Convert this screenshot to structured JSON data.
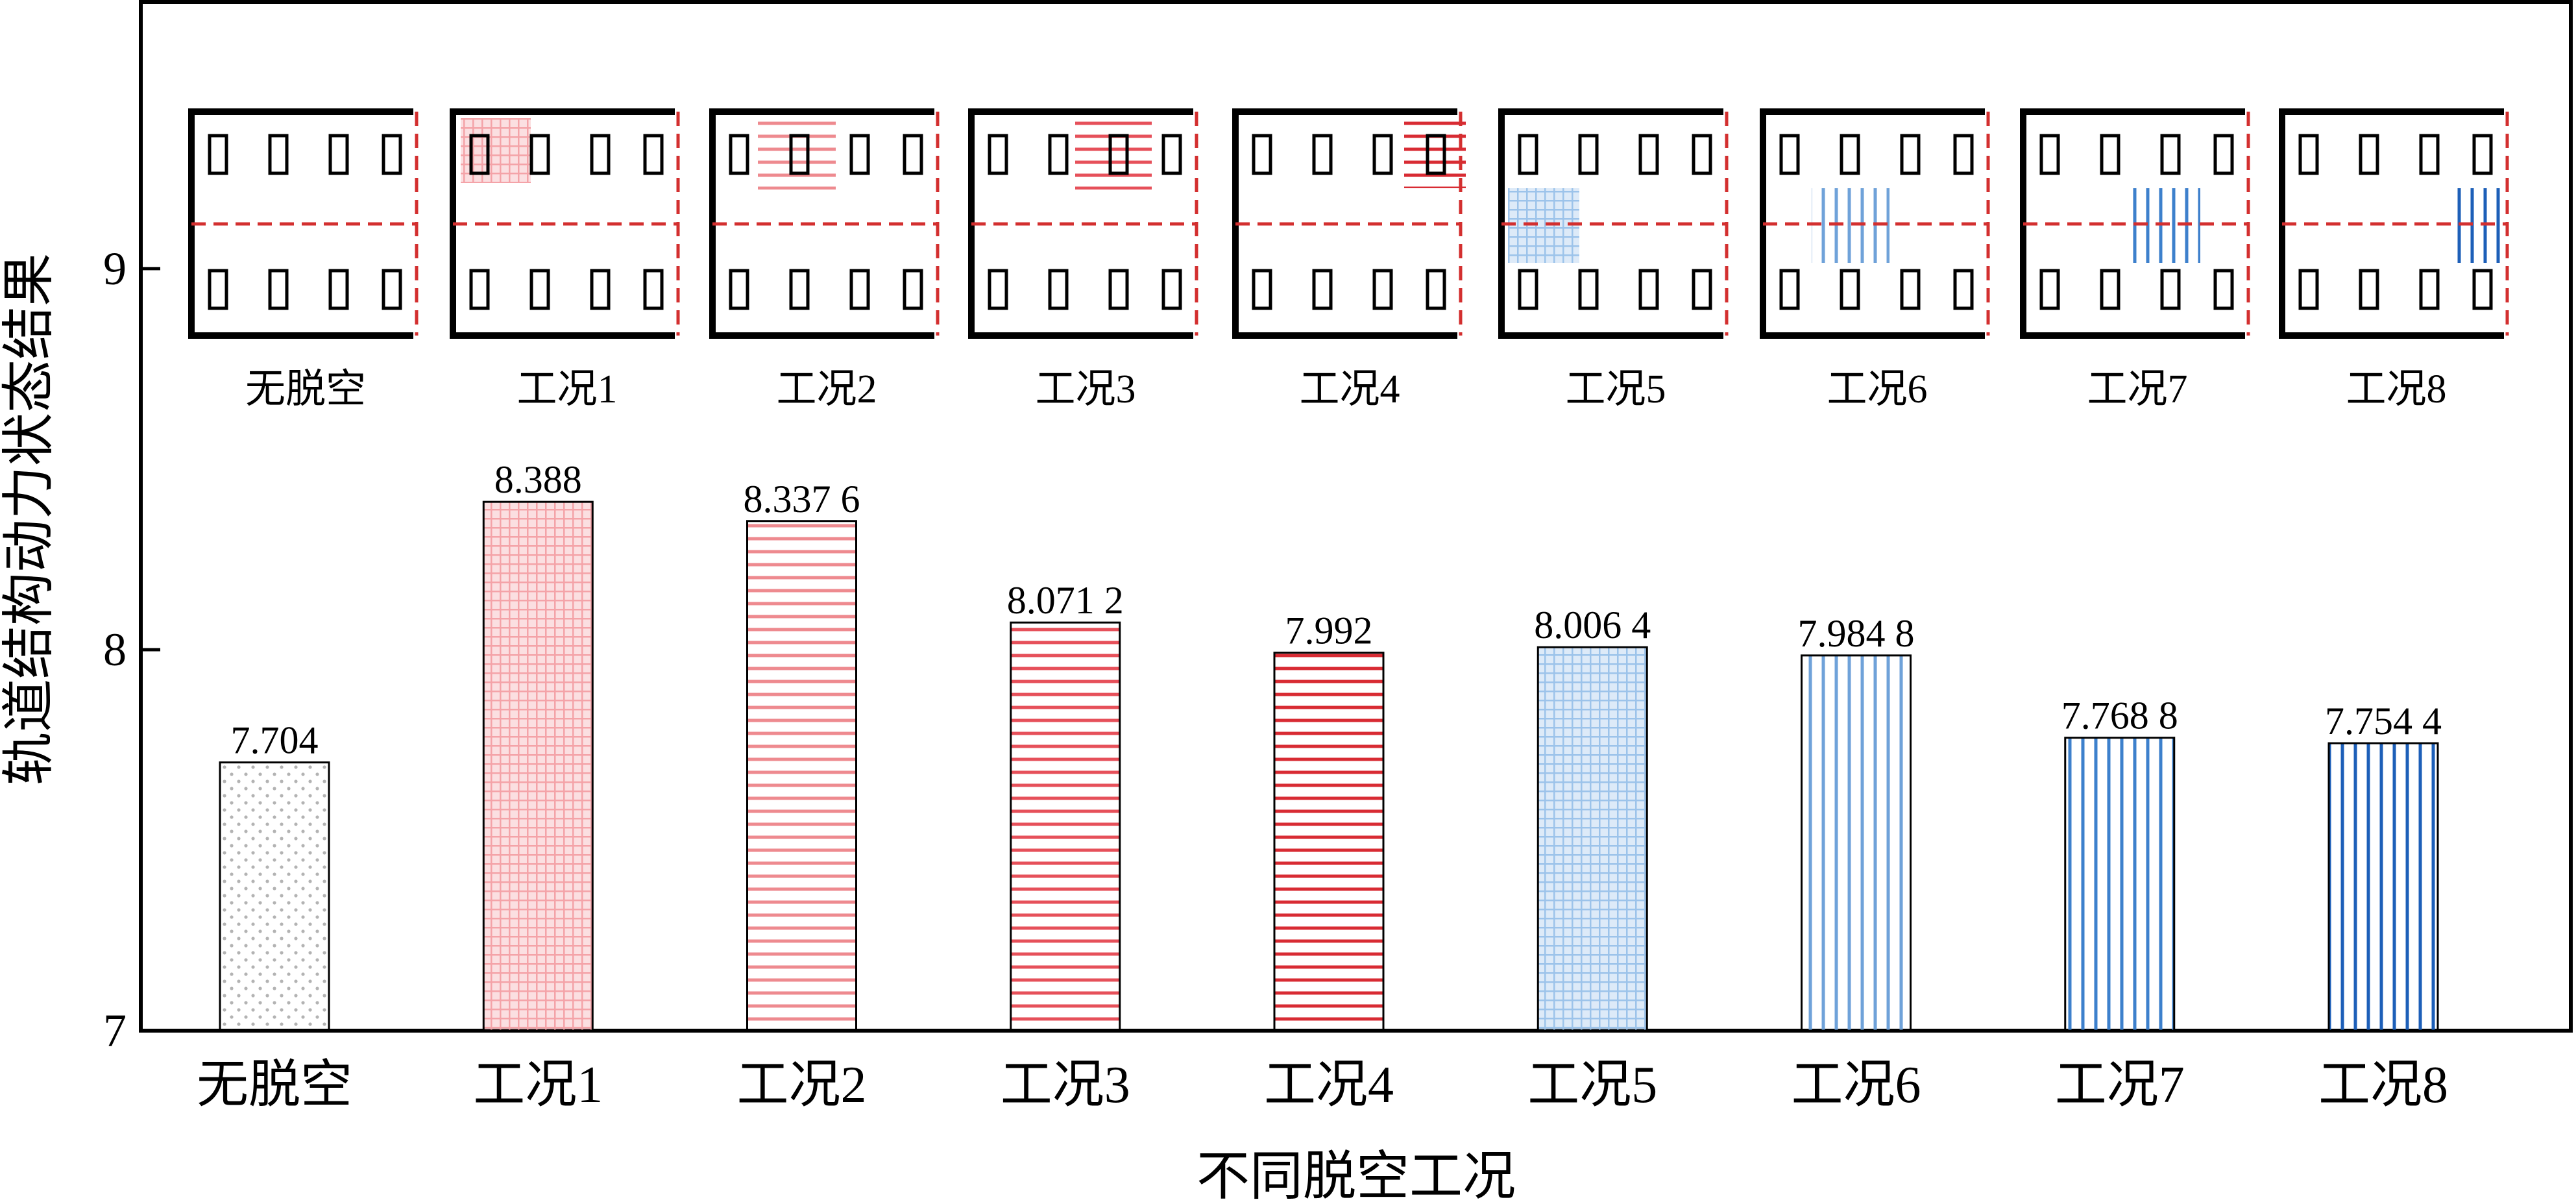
{
  "chart_data": {
    "type": "bar",
    "xlabel": "不同脱空工况",
    "ylabel": "轨道结构动力状态结果",
    "ylim": [
      7,
      9.7
    ],
    "yticks": [
      7,
      8,
      9
    ],
    "categories": [
      "无脱空",
      "工况1",
      "工况2",
      "工况3",
      "工况4",
      "工况5",
      "工况6",
      "工况7",
      "工况8"
    ],
    "values": [
      7.704,
      8.388,
      8.3376,
      8.0712,
      7.992,
      8.0064,
      7.9848,
      7.7688,
      7.7544
    ],
    "value_labels": [
      "7.704",
      "8.388",
      "8.337 6",
      "8.071 2",
      "7.992",
      "8.006 4",
      "7.984 8",
      "7.768 8",
      "7.754 4"
    ],
    "bar_styles": [
      {
        "pattern": "dots",
        "color": "#b3b3b3"
      },
      {
        "pattern": "grid",
        "color": "#f4a3a8"
      },
      {
        "pattern": "hlines",
        "color": "#ee8a8f"
      },
      {
        "pattern": "hlines",
        "color": "#e6505a"
      },
      {
        "pattern": "hlines",
        "color": "#d82b33"
      },
      {
        "pattern": "grid",
        "color": "#9cc3ea"
      },
      {
        "pattern": "vlines",
        "color": "#6fa2d9"
      },
      {
        "pattern": "vlines",
        "color": "#3d80cc"
      },
      {
        "pattern": "vlines",
        "color": "#1d5fb8"
      }
    ],
    "grid": false,
    "legend": "none"
  },
  "inset": {
    "labels": [
      "无脱空",
      "工况1",
      "工况2",
      "工况3",
      "工况4",
      "工况5",
      "工况6",
      "工况7",
      "工况8"
    ],
    "boundary_color": "#d32f2f"
  }
}
